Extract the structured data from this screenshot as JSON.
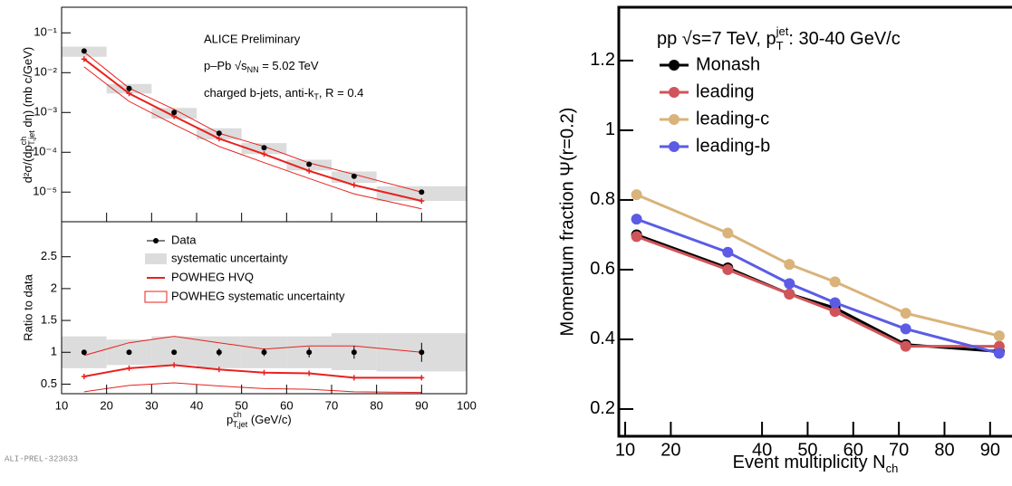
{
  "chart_data": [
    {
      "type": "line",
      "log_y": true,
      "annotations": [
        "ALICE Preliminary",
        [
          "p–Pb  √s",
          "NN",
          " = 5.02 TeV"
        ],
        [
          "charged b-jets, anti-k",
          "T",
          ", R = 0.4"
        ]
      ],
      "ylabel": [
        "d²σ/(dp",
        "ch",
        "T,jet",
        " dη) (mb c/GeV)"
      ],
      "xlim": [
        10,
        100
      ],
      "ylim": [
        1.8e-06,
        0.44
      ],
      "yticks": [
        {
          "value": 0.1,
          "label": "10⁻¹"
        },
        {
          "value": 0.01,
          "label": "10⁻²"
        },
        {
          "value": 0.001,
          "label": "10⁻³"
        },
        {
          "value": 0.0001,
          "label": "10⁻⁴"
        },
        {
          "value": 1e-05,
          "label": "10⁻⁵"
        }
      ],
      "x": [
        15,
        25,
        35,
        45,
        55,
        65,
        75,
        90
      ],
      "bins": [
        10,
        20,
        30,
        40,
        50,
        60,
        70,
        80,
        100
      ],
      "data": {
        "color": "#000000",
        "values": [
          0.035,
          0.004,
          0.001,
          0.0003,
          0.00013,
          5e-05,
          2.5e-05,
          1e-05
        ],
        "syst_low": [
          0.025,
          0.003,
          0.0007,
          0.00021,
          9e-05,
          3.5e-05,
          1.7e-05,
          6e-06
        ],
        "syst_high": [
          0.045,
          0.0052,
          0.0013,
          0.0004,
          0.00017,
          6.5e-05,
          3.3e-05,
          1.4e-05
        ],
        "syst_color": "#dcdcdc"
      },
      "powheg": {
        "color": "#e8211e",
        "values": [
          0.022,
          0.003,
          0.0008,
          0.00022,
          9e-05,
          3.4e-05,
          1.5e-05,
          6e-06
        ],
        "low": [
          0.014,
          0.0019,
          0.0005,
          0.00014,
          5.5e-05,
          2.2e-05,
          9e-06,
          3.8e-06
        ],
        "high": [
          0.033,
          0.0041,
          0.0012,
          0.0003,
          0.00014,
          5.4e-05,
          2.8e-05,
          1e-05
        ]
      }
    },
    {
      "type": "line",
      "ylabel": "Ratio to data",
      "xlabel": [
        "p",
        "ch",
        "T,jet",
        " (GeV/c)"
      ],
      "xlim": [
        10,
        100
      ],
      "xticks": [
        10,
        20,
        30,
        40,
        50,
        60,
        70,
        80,
        90,
        100
      ],
      "ylim": [
        0.35,
        3.05
      ],
      "yticks": [
        0.5,
        1,
        1.5,
        2,
        2.5
      ],
      "legend": [
        "Data",
        "systematic uncertainty",
        "POWHEG HVQ",
        "POWHEG systematic uncertainty"
      ],
      "x": [
        15,
        25,
        35,
        45,
        55,
        65,
        75,
        90
      ],
      "bins": [
        10,
        20,
        30,
        40,
        50,
        60,
        70,
        80,
        100
      ],
      "data": {
        "color": "#000000",
        "values": [
          1,
          1,
          1,
          1,
          1,
          1,
          1,
          1
        ],
        "errors": [
          0.02,
          0.02,
          0.02,
          0.06,
          0.06,
          0.08,
          0.1,
          0.15
        ],
        "syst_low": [
          0.75,
          0.8,
          0.8,
          0.75,
          0.75,
          0.75,
          0.72,
          0.7
        ],
        "syst_high": [
          1.25,
          1.2,
          1.25,
          1.25,
          1.25,
          1.25,
          1.3,
          1.3
        ],
        "syst_color": "#dcdcdc"
      },
      "powheg": {
        "color": "#e8211e",
        "values": [
          0.62,
          0.75,
          0.8,
          0.73,
          0.68,
          0.67,
          0.6,
          0.6
        ],
        "low": [
          0.38,
          0.48,
          0.52,
          0.47,
          0.43,
          0.42,
          0.38,
          0.37
        ],
        "high": [
          0.95,
          1.15,
          1.25,
          1.15,
          1.05,
          1.1,
          1.1,
          1.0
        ]
      }
    },
    {
      "type": "line",
      "annotation": [
        "pp  √s=7 TeV, p",
        "T",
        "jet",
        ": 30-40 GeV/c"
      ],
      "ylabel": "Momentum fraction Ψ(r=0.2)",
      "xlabel": [
        "Event multiplicity N",
        "ch"
      ],
      "xlim": [
        8.6,
        94.8
      ],
      "xticks": [
        10,
        20,
        40,
        50,
        60,
        70,
        80,
        90
      ],
      "ylim": [
        0.122,
        1.353
      ],
      "yticks": [
        0.2,
        0.4,
        0.6,
        0.8,
        1,
        1.2
      ],
      "x": [
        12.5,
        32.5,
        46,
        56,
        71.5,
        92
      ],
      "series": [
        {
          "name": "Monash",
          "color": "#000000",
          "values": [
            0.7,
            0.605,
            0.53,
            0.49,
            0.385,
            0.365
          ]
        },
        {
          "name": "leading",
          "color": "#d0555a",
          "values": [
            0.695,
            0.6,
            0.53,
            0.48,
            0.38,
            0.38
          ]
        },
        {
          "name": "leading-c",
          "color": "#d9b37a",
          "values": [
            0.815,
            0.705,
            0.615,
            0.565,
            0.475,
            0.41
          ]
        },
        {
          "name": "leading-b",
          "color": "#5b5be6",
          "values": [
            0.745,
            0.65,
            0.56,
            0.505,
            0.43,
            0.36
          ]
        }
      ]
    }
  ],
  "footnote": "ALI-PREL-323633"
}
